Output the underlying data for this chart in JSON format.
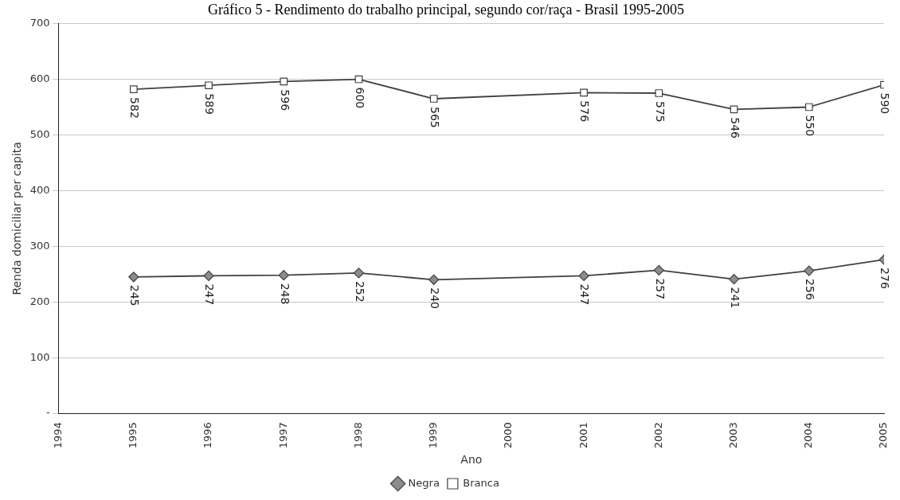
{
  "chart_data": {
    "type": "line",
    "title": "Gráfico 5 - Rendimento do trabalho principal, segundo cor/raça - Brasil 1995-2005",
    "xlabel": "Ano",
    "ylabel": "Renda domiciliar per capita",
    "xlim": [
      1994,
      2005
    ],
    "xticks": [
      1994,
      1995,
      1996,
      1997,
      1998,
      1999,
      2000,
      2001,
      2002,
      2003,
      2004,
      2005
    ],
    "ylim": [
      0,
      700
    ],
    "yticks": [
      {
        "value": 0,
        "label": "-"
      },
      100,
      200,
      300,
      400,
      500,
      600,
      700
    ],
    "grid": "y",
    "legend": "bottom",
    "data_labels": true,
    "line_style": "solid",
    "series": [
      {
        "name": "Negra",
        "color": "#404040",
        "marker": "diamond",
        "x": [
          1995,
          1996,
          1997,
          1998,
          1999,
          2001,
          2002,
          2003,
          2004,
          2005
        ],
        "values": [
          245,
          247,
          248,
          252,
          240,
          247,
          257,
          241,
          256,
          276
        ]
      },
      {
        "name": "Branca",
        "color": "#404040",
        "marker": "square",
        "x": [
          1995,
          1996,
          1997,
          1998,
          1999,
          2001,
          2002,
          2003,
          2004,
          2005
        ],
        "values": [
          582,
          589,
          596,
          600,
          565,
          576,
          575,
          546,
          550,
          590
        ]
      }
    ]
  }
}
